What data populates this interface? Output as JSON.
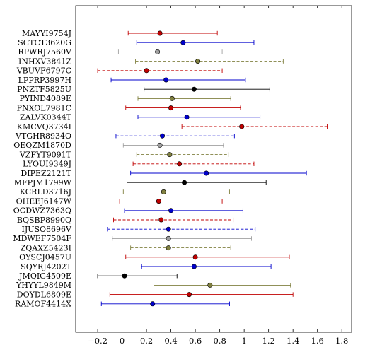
{
  "chart_data": {
    "type": "scatter",
    "subtype": "dot-with-error-bars",
    "title": "",
    "xlabel": "",
    "ylabel": "",
    "xlim": [
      -0.38,
      1.88
    ],
    "xticks": [
      -0.2,
      0,
      0.2,
      0.4,
      0.6,
      0.8,
      1,
      1.2,
      1.4,
      1.6,
      1.8
    ],
    "xtick_labels": [
      "−0.2",
      "0",
      "0.2",
      "0.4",
      "0.6",
      "0.8",
      "1",
      "1.2",
      "1.4",
      "1.6",
      "1.8"
    ],
    "grid": false,
    "legend": false,
    "colors": {
      "red": "#c00000",
      "blue": "#0000cc",
      "olive": "#808040",
      "gray": "#a0a0a0",
      "black": "#000000"
    },
    "points": [
      {
        "label": "MAYYI9754J",
        "value": 0.31,
        "low": 0.05,
        "high": 0.78,
        "color": "red",
        "dashed": false
      },
      {
        "label": "SCTCT3620G",
        "value": 0.5,
        "low": 0.12,
        "high": 1.08,
        "color": "blue",
        "dashed": false
      },
      {
        "label": "RPWRJ7560V",
        "value": 0.29,
        "low": -0.03,
        "high": 0.82,
        "color": "gray",
        "dashed": true
      },
      {
        "label": "INHXV3841Z",
        "value": 0.62,
        "low": 0.11,
        "high": 1.32,
        "color": "olive",
        "dashed": true
      },
      {
        "label": "VBUVF6797C",
        "value": 0.2,
        "low": -0.2,
        "high": 0.82,
        "color": "red",
        "dashed": true
      },
      {
        "label": "LPPRP3997H",
        "value": 0.36,
        "low": -0.09,
        "high": 1.01,
        "color": "blue",
        "dashed": false
      },
      {
        "label": "PNZTF5825U",
        "value": 0.59,
        "low": 0.18,
        "high": 1.21,
        "color": "black",
        "dashed": false
      },
      {
        "label": "PYIND4089E",
        "value": 0.41,
        "low": 0.13,
        "high": 0.89,
        "color": "olive",
        "dashed": false
      },
      {
        "label": "PNXOL7981C",
        "value": 0.4,
        "low": 0.03,
        "high": 0.97,
        "color": "red",
        "dashed": false
      },
      {
        "label": "ZALVK0344T",
        "value": 0.53,
        "low": 0.13,
        "high": 1.13,
        "color": "blue",
        "dashed": false
      },
      {
        "label": "KMCVQ3734I",
        "value": 0.98,
        "low": 0.49,
        "high": 1.68,
        "color": "red",
        "dashed": true
      },
      {
        "label": "VTGHR8934O",
        "value": 0.33,
        "low": -0.05,
        "high": 0.92,
        "color": "blue",
        "dashed": true
      },
      {
        "label": "OEQZM1870D",
        "value": 0.31,
        "low": 0.01,
        "high": 0.83,
        "color": "gray",
        "dashed": false
      },
      {
        "label": "VZFYT9091T",
        "value": 0.39,
        "low": 0.12,
        "high": 0.87,
        "color": "olive",
        "dashed": true
      },
      {
        "label": "LYOUI9349J",
        "value": 0.47,
        "low": 0.09,
        "high": 1.08,
        "color": "red",
        "dashed": true
      },
      {
        "label": "DIPEZ2121T",
        "value": 0.69,
        "low": 0.07,
        "high": 1.51,
        "color": "blue",
        "dashed": false
      },
      {
        "label": "MFPJM1799W",
        "value": 0.51,
        "low": 0.04,
        "high": 1.18,
        "color": "black",
        "dashed": false
      },
      {
        "label": "KCRLD3716J",
        "value": 0.34,
        "low": 0.01,
        "high": 0.88,
        "color": "olive",
        "dashed": false
      },
      {
        "label": "OHEEJ6147W",
        "value": 0.3,
        "low": -0.02,
        "high": 0.82,
        "color": "red",
        "dashed": false
      },
      {
        "label": "OCDWZ7363Q",
        "value": 0.4,
        "low": 0.02,
        "high": 0.99,
        "color": "blue",
        "dashed": false
      },
      {
        "label": "BQSBP8990Q",
        "value": 0.32,
        "low": -0.07,
        "high": 0.91,
        "color": "red",
        "dashed": true
      },
      {
        "label": "IJUSO8696V",
        "value": 0.38,
        "low": -0.12,
        "high": 1.09,
        "color": "blue",
        "dashed": true
      },
      {
        "label": "MDWEF7504F",
        "value": 0.38,
        "low": -0.08,
        "high": 1.06,
        "color": "gray",
        "dashed": false
      },
      {
        "label": "ZQAXZ5423I",
        "value": 0.38,
        "low": 0.07,
        "high": 0.89,
        "color": "olive",
        "dashed": true
      },
      {
        "label": "OYSCJ0457U",
        "value": 0.6,
        "low": 0.03,
        "high": 1.37,
        "color": "red",
        "dashed": false
      },
      {
        "label": "SQYRJ4202T",
        "value": 0.59,
        "low": 0.16,
        "high": 1.22,
        "color": "blue",
        "dashed": false
      },
      {
        "label": "JMQIG4509E",
        "value": 0.02,
        "low": -0.2,
        "high": 0.45,
        "color": "black",
        "dashed": false
      },
      {
        "label": "YHYYL9849M",
        "value": 0.72,
        "low": 0.26,
        "high": 1.38,
        "color": "olive",
        "dashed": false
      },
      {
        "label": "DOYDL6809E",
        "value": 0.55,
        "low": -0.1,
        "high": 1.4,
        "color": "red",
        "dashed": false
      },
      {
        "label": "RAMOF4414X",
        "value": 0.25,
        "low": -0.17,
        "high": 0.88,
        "color": "blue",
        "dashed": false
      }
    ]
  }
}
